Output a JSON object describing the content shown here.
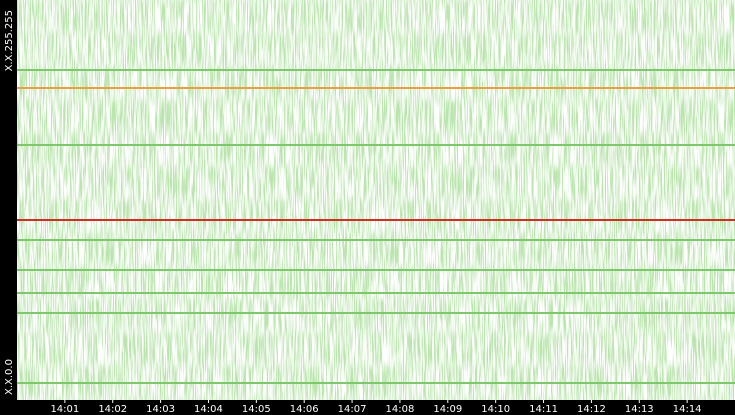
{
  "chart_data": {
    "type": "scatter",
    "xlim": [
      0,
      15
    ],
    "xticks": [
      {
        "value": 1,
        "label": "14:01"
      },
      {
        "value": 2,
        "label": "14:02"
      },
      {
        "value": 3,
        "label": "14:03"
      },
      {
        "value": 4,
        "label": "14:04"
      },
      {
        "value": 5,
        "label": "14:05"
      },
      {
        "value": 6,
        "label": "14:06"
      },
      {
        "value": 7,
        "label": "14:07"
      },
      {
        "value": 8,
        "label": "14:08"
      },
      {
        "value": 9,
        "label": "14:09"
      },
      {
        "value": 10,
        "label": "14:10"
      },
      {
        "value": 11,
        "label": "14:11"
      },
      {
        "value": 12,
        "label": "14:12"
      },
      {
        "value": 13,
        "label": "14:13"
      },
      {
        "value": 14,
        "label": "14:14"
      }
    ],
    "ylim": [
      0,
      65535
    ],
    "yticks": [
      {
        "value": 0,
        "label": "X.X.0.0"
      },
      {
        "value": 65535,
        "label": "X.X.255.255"
      }
    ],
    "series": [
      {
        "color": "#7cc86a",
        "x": [
          0,
          15
        ],
        "values": [
          54066,
          54066
        ]
      },
      {
        "color": "#e8a040",
        "x": [
          0,
          15
        ],
        "values": [
          51117,
          51117
        ]
      },
      {
        "color": "#7cc86a",
        "x": [
          0,
          15
        ],
        "values": [
          41779,
          41779
        ]
      },
      {
        "color": "#d03020",
        "x": [
          0,
          15
        ],
        "values": [
          29491,
          29491
        ]
      },
      {
        "color": "#7cc86a",
        "x": [
          0,
          15
        ],
        "values": [
          26214,
          26214
        ]
      },
      {
        "color": "#7cc86a",
        "x": [
          0,
          15
        ],
        "values": [
          21299,
          21299
        ]
      },
      {
        "color": "#7cc86a",
        "x": [
          0,
          15
        ],
        "values": [
          17530,
          17530
        ]
      },
      {
        "color": "#7cc86a",
        "x": [
          0,
          15
        ],
        "values": [
          14254,
          14254
        ]
      },
      {
        "color": "#7cc86a",
        "x": [
          0,
          15
        ],
        "values": [
          2785,
          2785
        ]
      }
    ]
  }
}
